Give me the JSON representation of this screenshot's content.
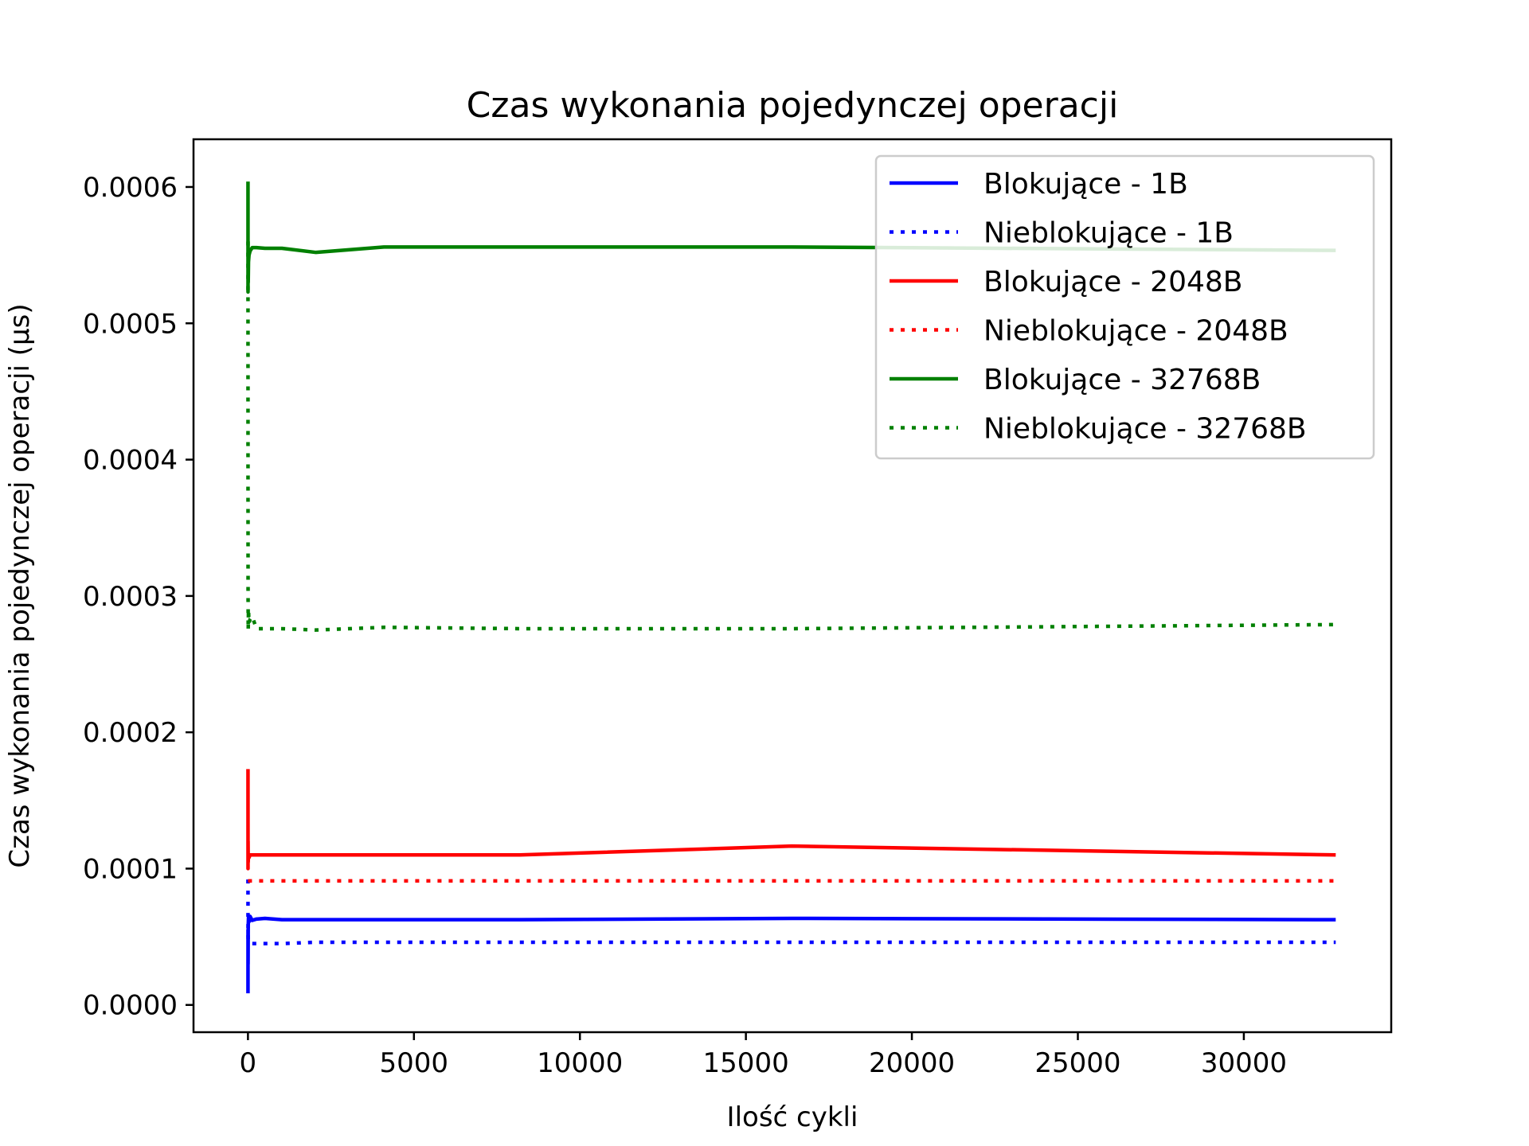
{
  "chart_data": {
    "type": "line",
    "title": "Czas wykonania pojedynczej operacji",
    "xlabel": "Ilość cykli",
    "ylabel": "Czas wykonania pojedynczej operacji (µs)",
    "xlim": [
      -1640,
      34440
    ],
    "ylim": [
      -2e-05,
      0.000635
    ],
    "xticks": [
      0,
      5000,
      10000,
      15000,
      20000,
      25000,
      30000
    ],
    "xtick_labels": [
      "0",
      "5000",
      "10000",
      "15000",
      "20000",
      "25000",
      "30000"
    ],
    "yticks": [
      0,
      0.0001,
      0.0002,
      0.0003,
      0.0004,
      0.0005,
      0.0006
    ],
    "ytick_labels": [
      "0.0000",
      "0.0001",
      "0.0002",
      "0.0003",
      "0.0004",
      "0.0005",
      "0.0006"
    ],
    "grid": false,
    "legend_position": "top-right",
    "series": [
      {
        "name": "Blokujące - 1B",
        "color": "#0000ff",
        "style": "solid",
        "x": [
          1,
          2,
          4,
          8,
          16,
          32,
          64,
          128,
          256,
          512,
          1024,
          2048,
          4096,
          8192,
          16384,
          32768
        ],
        "y": [
          8.5e-06,
          5.5e-05,
          3e-05,
          5.8e-05,
          6.4e-05,
          6.1e-05,
          6.5e-05,
          6.2e-05,
          6.3e-05,
          6.35e-05,
          6.25e-05,
          6.25e-05,
          6.25e-05,
          6.25e-05,
          6.35e-05,
          6.25e-05
        ]
      },
      {
        "name": "Nieblokujące - 1B",
        "color": "#0000ff",
        "style": "dotted",
        "x": [
          1,
          2,
          4,
          8,
          16,
          32,
          64,
          128,
          256,
          512,
          1024,
          2048,
          4096,
          8192,
          16384,
          32768
        ],
        "y": [
          9.2e-05,
          6e-05,
          5e-05,
          4.7e-05,
          4.6e-05,
          4.6e-05,
          4.55e-05,
          4.5e-05,
          4.5e-05,
          4.5e-05,
          4.5e-05,
          4.6e-05,
          4.6e-05,
          4.6e-05,
          4.6e-05,
          4.6e-05
        ]
      },
      {
        "name": "Blokujące - 2048B",
        "color": "#ff0000",
        "style": "solid",
        "x": [
          1,
          2,
          4,
          8,
          16,
          32,
          64,
          128,
          256,
          512,
          1024,
          2048,
          4096,
          8192,
          16384,
          32768
        ],
        "y": [
          0.000173,
          0.0001,
          0.00012,
          0.000105,
          0.00011,
          0.000108,
          0.00011,
          0.00011,
          0.00011,
          0.00011,
          0.00011,
          0.00011,
          0.00011,
          0.00011,
          0.0001165,
          0.00011
        ]
      },
      {
        "name": "Nieblokujące - 2048B",
        "color": "#ff0000",
        "style": "dotted",
        "x": [
          1,
          2,
          4,
          8,
          16,
          32,
          64,
          128,
          256,
          512,
          1024,
          2048,
          4096,
          8192,
          16384,
          32768
        ],
        "y": [
          9.1e-05,
          9.1e-05,
          9.1e-05,
          9.1e-05,
          9.1e-05,
          9.1e-05,
          9.1e-05,
          9.1e-05,
          9.1e-05,
          9.1e-05,
          9.1e-05,
          9.1e-05,
          9.1e-05,
          9.1e-05,
          9.1e-05,
          9.1e-05
        ]
      },
      {
        "name": "Blokujące - 32768B",
        "color": "#008000",
        "style": "solid",
        "x": [
          1,
          2,
          4,
          8,
          16,
          32,
          64,
          128,
          256,
          512,
          1024,
          2048,
          4096,
          8192,
          16384,
          32768
        ],
        "y": [
          0.000604,
          0.000523,
          0.00056,
          0.00053,
          0.000545,
          0.00055,
          0.000553,
          0.0005555,
          0.0005555,
          0.000555,
          0.000555,
          0.000552,
          0.000556,
          0.000556,
          0.000556,
          0.0005535
        ]
      },
      {
        "name": "Nieblokujące - 32768B",
        "color": "#008000",
        "style": "dotted",
        "x": [
          1,
          2,
          4,
          8,
          16,
          32,
          64,
          128,
          256,
          512,
          1024,
          2048,
          4096,
          8192,
          16384,
          32768
        ],
        "y": [
          0.00056,
          0.00038,
          0.0003,
          0.000275,
          0.00029,
          0.00028,
          0.000283,
          0.000285,
          0.000276,
          0.000276,
          0.000276,
          0.000275,
          0.000277,
          0.000276,
          0.000276,
          0.000279
        ]
      }
    ]
  }
}
